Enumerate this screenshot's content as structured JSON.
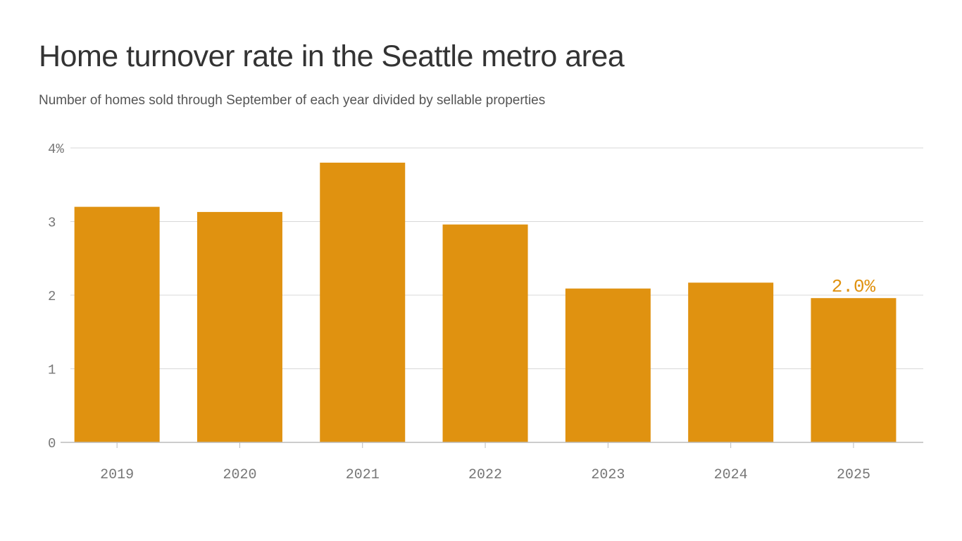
{
  "title": "Home turnover rate in the Seattle metro area",
  "subtitle": "Number of homes sold through September of each year divided by sellable properties",
  "colors": {
    "bar": "#E09210",
    "grid": "#D9D9D9",
    "axis": "#BBBBBB",
    "label": "#E09210"
  },
  "chart_data": {
    "type": "bar",
    "categories": [
      "2019",
      "2020",
      "2021",
      "2022",
      "2023",
      "2024",
      "2025"
    ],
    "values": [
      3.2,
      3.13,
      3.8,
      2.96,
      2.09,
      2.17,
      1.96
    ],
    "ylim": [
      0,
      4
    ],
    "yticks": [
      0,
      1,
      2,
      3,
      4
    ],
    "ytick_labels": [
      "0",
      "1",
      "2",
      "3",
      "4%"
    ],
    "grid": true,
    "annotations": [
      {
        "category": "2025",
        "text": "2.0%"
      }
    ]
  }
}
